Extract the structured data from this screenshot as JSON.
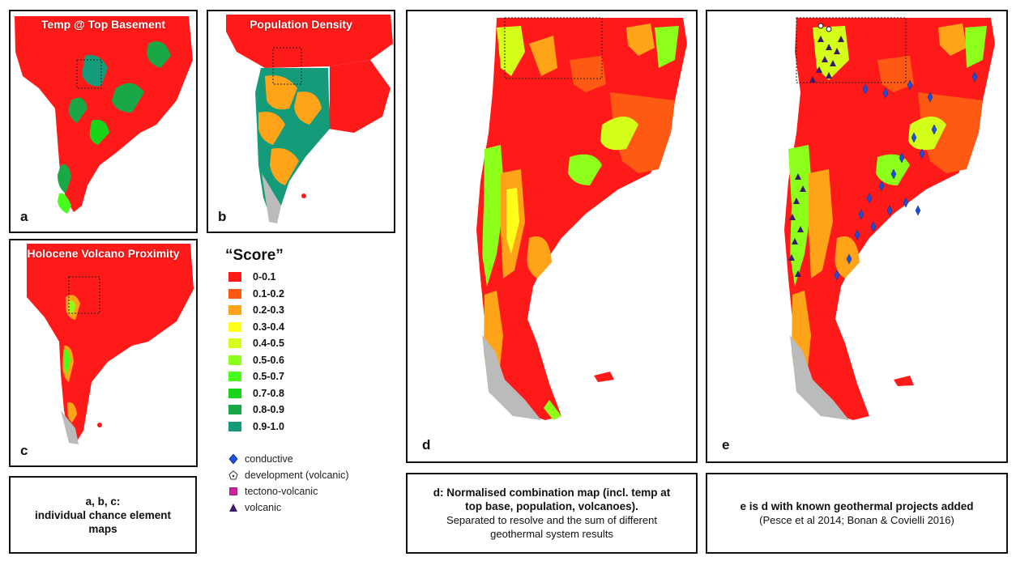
{
  "panels": {
    "a": {
      "letter": "a",
      "title": "Temp @ Top Basement"
    },
    "b": {
      "letter": "b",
      "title": "Population Density"
    },
    "c": {
      "letter": "c",
      "title": "Holocene Volcano Proximity"
    },
    "d": {
      "letter": "d"
    },
    "e": {
      "letter": "e"
    }
  },
  "legend": {
    "title": "“Score”",
    "classes": [
      {
        "label": "0-0.1",
        "color": "#ff1a1a"
      },
      {
        "label": "0.1-0.2",
        "color": "#ff5a14"
      },
      {
        "label": "0.2-0.3",
        "color": "#ffa319"
      },
      {
        "label": "0.3-0.4",
        "color": "#ffff1a"
      },
      {
        "label": "0.4-0.5",
        "color": "#d4ff1a"
      },
      {
        "label": "0.5-0.6",
        "color": "#8cff1a"
      },
      {
        "label": "0.5-0.7",
        "color": "#47ff1a"
      },
      {
        "label": "0.7-0.8",
        "color": "#1ad41a"
      },
      {
        "label": "0.8-0.9",
        "color": "#1aa847"
      },
      {
        "label": "0.9-1.0",
        "color": "#149c7a"
      }
    ],
    "markers": [
      {
        "label": "conductive",
        "icon": "blue-diamond",
        "color": "#1f4fd8"
      },
      {
        "label": "development (volcanic)",
        "icon": "white-pentagon",
        "color": "#ffffff"
      },
      {
        "label": "tectono-volcanic",
        "icon": "magenta-square",
        "color": "#d21ea0"
      },
      {
        "label": "volcanic",
        "icon": "purple-triangle",
        "color": "#3b1a6b"
      }
    ]
  },
  "captions": {
    "abc": {
      "line1": "a, b, c:",
      "line2": "individual chance element",
      "line3": "maps"
    },
    "d": {
      "bold1": "d: Normalised combination map (incl. temp at",
      "bold2": "top base, population, volcanoes).",
      "normal1": "Separated to resolve and the sum of different",
      "normal2": "geothermal system results"
    },
    "e": {
      "bold": "e is d with known geothermal projects added",
      "normal": "(Pesce et al 2014; Bonan & Covielli 2016)"
    }
  }
}
